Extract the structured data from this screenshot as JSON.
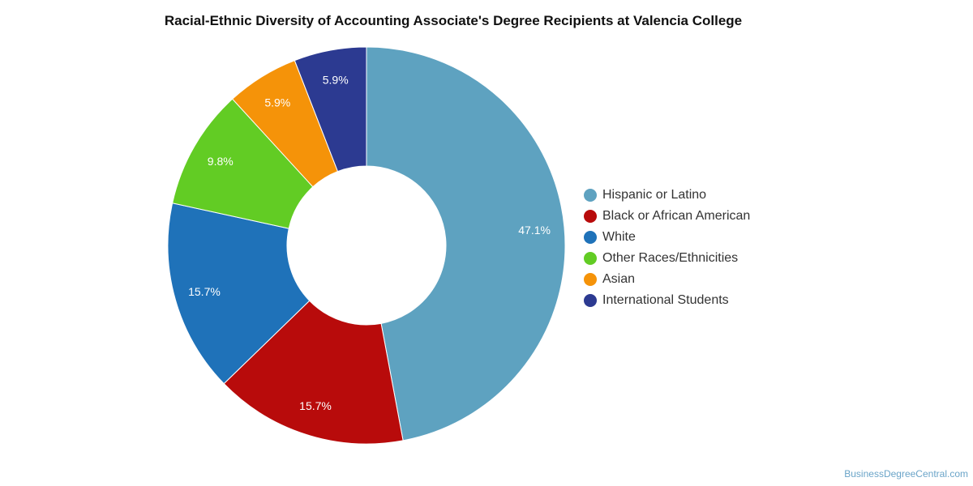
{
  "chart_data": {
    "type": "pie",
    "title": "Racial-Ethnic Diversity of Accounting Associate's Degree Recipients at Valencia College",
    "donut": true,
    "legend_position": "right",
    "slices": [
      {
        "name": "Hispanic or Latino",
        "value": 47.1,
        "label": "47.1%",
        "color": "#5ea2c0"
      },
      {
        "name": "Black or African American",
        "value": 15.7,
        "label": "15.7%",
        "color": "#b80b0b"
      },
      {
        "name": "White",
        "value": 15.7,
        "label": "15.7%",
        "color": "#1f72b9"
      },
      {
        "name": "Other Races/Ethnicities",
        "value": 9.8,
        "label": "9.8%",
        "color": "#62cc24"
      },
      {
        "name": "Asian",
        "value": 5.9,
        "label": "5.9%",
        "color": "#f59309"
      },
      {
        "name": "International Students",
        "value": 5.9,
        "label": "5.9%",
        "color": "#2c3a91"
      }
    ]
  },
  "footer": {
    "credit": "BusinessDegreeCentral.com"
  }
}
